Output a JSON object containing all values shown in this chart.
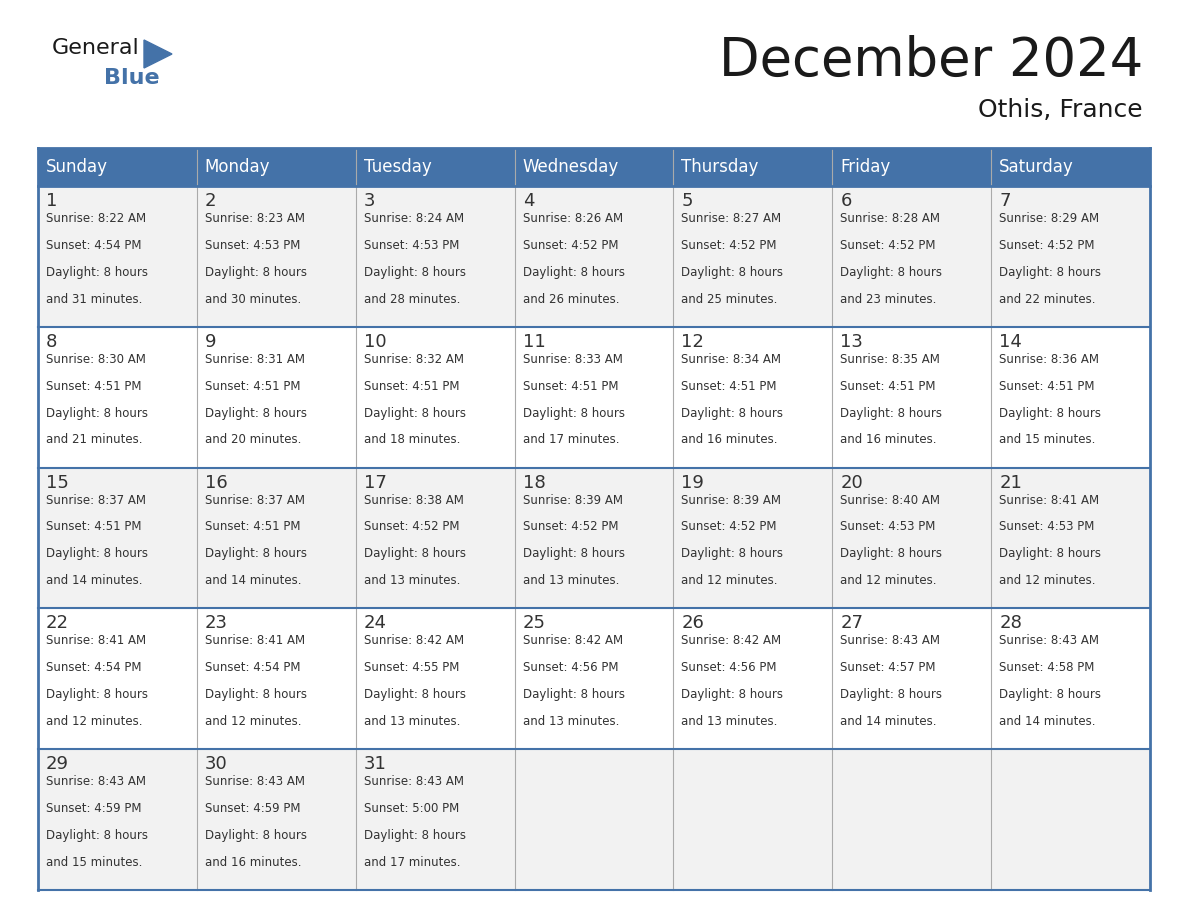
{
  "title": "December 2024",
  "subtitle": "Othis, France",
  "header_color": "#4472A8",
  "header_text_color": "#FFFFFF",
  "cell_bg_color": "#F2F2F2",
  "cell_alt_bg_color": "#FFFFFF",
  "border_color": "#4472A8",
  "row_border_color": "#4472A8",
  "col_border_color": "#AAAAAA",
  "text_color": "#333333",
  "day_headers": [
    "Sunday",
    "Monday",
    "Tuesday",
    "Wednesday",
    "Thursday",
    "Friday",
    "Saturday"
  ],
  "title_fontsize": 38,
  "subtitle_fontsize": 18,
  "day_header_fontsize": 12,
  "day_num_fontsize": 13,
  "cell_text_fontsize": 8.5,
  "logo_general_fontsize": 16,
  "logo_blue_fontsize": 16,
  "weeks": [
    [
      {
        "day": 1,
        "sunrise": "8:22 AM",
        "sunset": "4:54 PM",
        "daylight_hrs": 8,
        "daylight_min": "31 minutes."
      },
      {
        "day": 2,
        "sunrise": "8:23 AM",
        "sunset": "4:53 PM",
        "daylight_hrs": 8,
        "daylight_min": "30 minutes."
      },
      {
        "day": 3,
        "sunrise": "8:24 AM",
        "sunset": "4:53 PM",
        "daylight_hrs": 8,
        "daylight_min": "28 minutes."
      },
      {
        "day": 4,
        "sunrise": "8:26 AM",
        "sunset": "4:52 PM",
        "daylight_hrs": 8,
        "daylight_min": "26 minutes."
      },
      {
        "day": 5,
        "sunrise": "8:27 AM",
        "sunset": "4:52 PM",
        "daylight_hrs": 8,
        "daylight_min": "25 minutes."
      },
      {
        "day": 6,
        "sunrise": "8:28 AM",
        "sunset": "4:52 PM",
        "daylight_hrs": 8,
        "daylight_min": "23 minutes."
      },
      {
        "day": 7,
        "sunrise": "8:29 AM",
        "sunset": "4:52 PM",
        "daylight_hrs": 8,
        "daylight_min": "22 minutes."
      }
    ],
    [
      {
        "day": 8,
        "sunrise": "8:30 AM",
        "sunset": "4:51 PM",
        "daylight_hrs": 8,
        "daylight_min": "21 minutes."
      },
      {
        "day": 9,
        "sunrise": "8:31 AM",
        "sunset": "4:51 PM",
        "daylight_hrs": 8,
        "daylight_min": "20 minutes."
      },
      {
        "day": 10,
        "sunrise": "8:32 AM",
        "sunset": "4:51 PM",
        "daylight_hrs": 8,
        "daylight_min": "18 minutes."
      },
      {
        "day": 11,
        "sunrise": "8:33 AM",
        "sunset": "4:51 PM",
        "daylight_hrs": 8,
        "daylight_min": "17 minutes."
      },
      {
        "day": 12,
        "sunrise": "8:34 AM",
        "sunset": "4:51 PM",
        "daylight_hrs": 8,
        "daylight_min": "16 minutes."
      },
      {
        "day": 13,
        "sunrise": "8:35 AM",
        "sunset": "4:51 PM",
        "daylight_hrs": 8,
        "daylight_min": "16 minutes."
      },
      {
        "day": 14,
        "sunrise": "8:36 AM",
        "sunset": "4:51 PM",
        "daylight_hrs": 8,
        "daylight_min": "15 minutes."
      }
    ],
    [
      {
        "day": 15,
        "sunrise": "8:37 AM",
        "sunset": "4:51 PM",
        "daylight_hrs": 8,
        "daylight_min": "14 minutes."
      },
      {
        "day": 16,
        "sunrise": "8:37 AM",
        "sunset": "4:51 PM",
        "daylight_hrs": 8,
        "daylight_min": "14 minutes."
      },
      {
        "day": 17,
        "sunrise": "8:38 AM",
        "sunset": "4:52 PM",
        "daylight_hrs": 8,
        "daylight_min": "13 minutes."
      },
      {
        "day": 18,
        "sunrise": "8:39 AM",
        "sunset": "4:52 PM",
        "daylight_hrs": 8,
        "daylight_min": "13 minutes."
      },
      {
        "day": 19,
        "sunrise": "8:39 AM",
        "sunset": "4:52 PM",
        "daylight_hrs": 8,
        "daylight_min": "12 minutes."
      },
      {
        "day": 20,
        "sunrise": "8:40 AM",
        "sunset": "4:53 PM",
        "daylight_hrs": 8,
        "daylight_min": "12 minutes."
      },
      {
        "day": 21,
        "sunrise": "8:41 AM",
        "sunset": "4:53 PM",
        "daylight_hrs": 8,
        "daylight_min": "12 minutes."
      }
    ],
    [
      {
        "day": 22,
        "sunrise": "8:41 AM",
        "sunset": "4:54 PM",
        "daylight_hrs": 8,
        "daylight_min": "12 minutes."
      },
      {
        "day": 23,
        "sunrise": "8:41 AM",
        "sunset": "4:54 PM",
        "daylight_hrs": 8,
        "daylight_min": "12 minutes."
      },
      {
        "day": 24,
        "sunrise": "8:42 AM",
        "sunset": "4:55 PM",
        "daylight_hrs": 8,
        "daylight_min": "13 minutes."
      },
      {
        "day": 25,
        "sunrise": "8:42 AM",
        "sunset": "4:56 PM",
        "daylight_hrs": 8,
        "daylight_min": "13 minutes."
      },
      {
        "day": 26,
        "sunrise": "8:42 AM",
        "sunset": "4:56 PM",
        "daylight_hrs": 8,
        "daylight_min": "13 minutes."
      },
      {
        "day": 27,
        "sunrise": "8:43 AM",
        "sunset": "4:57 PM",
        "daylight_hrs": 8,
        "daylight_min": "14 minutes."
      },
      {
        "day": 28,
        "sunrise": "8:43 AM",
        "sunset": "4:58 PM",
        "daylight_hrs": 8,
        "daylight_min": "14 minutes."
      }
    ],
    [
      {
        "day": 29,
        "sunrise": "8:43 AM",
        "sunset": "4:59 PM",
        "daylight_hrs": 8,
        "daylight_min": "15 minutes."
      },
      {
        "day": 30,
        "sunrise": "8:43 AM",
        "sunset": "4:59 PM",
        "daylight_hrs": 8,
        "daylight_min": "16 minutes."
      },
      {
        "day": 31,
        "sunrise": "8:43 AM",
        "sunset": "5:00 PM",
        "daylight_hrs": 8,
        "daylight_min": "17 minutes."
      },
      null,
      null,
      null,
      null
    ]
  ]
}
